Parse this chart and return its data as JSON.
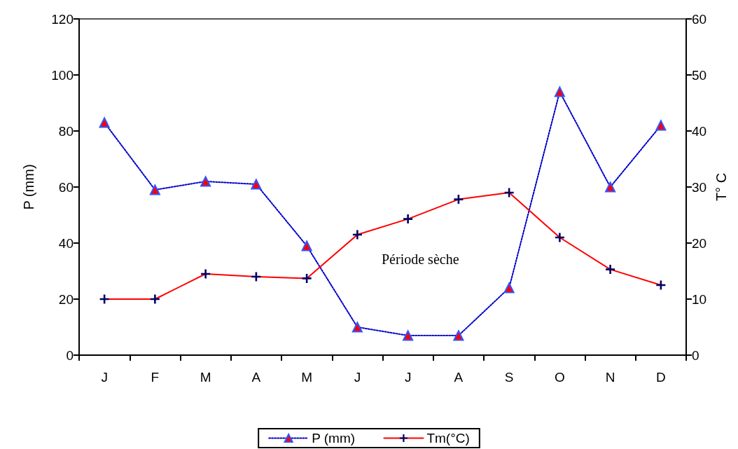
{
  "chart_data": {
    "type": "line",
    "ylabel": "P (mm)",
    "y2label": "T° C",
    "categories": [
      "J",
      "F",
      "M",
      "A",
      "M",
      "J",
      "J",
      "A",
      "S",
      "O",
      "N",
      "D"
    ],
    "series": [
      {
        "name": "P (mm)",
        "color": "#0000cc",
        "marker": "triangle",
        "line_style": "dotted",
        "values": [
          83,
          59,
          62,
          61,
          39,
          10,
          7,
          7,
          24,
          94,
          60,
          82
        ]
      },
      {
        "name": "Tm(°C)",
        "axis": "y2",
        "color": "#ff0000",
        "marker": "cross",
        "line_style": "solid",
        "values": [
          10,
          10,
          14.5,
          14,
          13.7,
          21.5,
          24.3,
          27.8,
          29,
          21,
          15.3,
          12.5
        ]
      }
    ],
    "ylim": [
      0,
      120
    ],
    "yticks": [
      0,
      20,
      40,
      60,
      80,
      100,
      120
    ],
    "y2lim": [
      0,
      60
    ],
    "y2ticks": [
      0,
      10,
      20,
      30,
      40,
      50,
      60
    ],
    "annotations": [
      "Période sèche"
    ],
    "grid": false,
    "legend": "bottom"
  }
}
